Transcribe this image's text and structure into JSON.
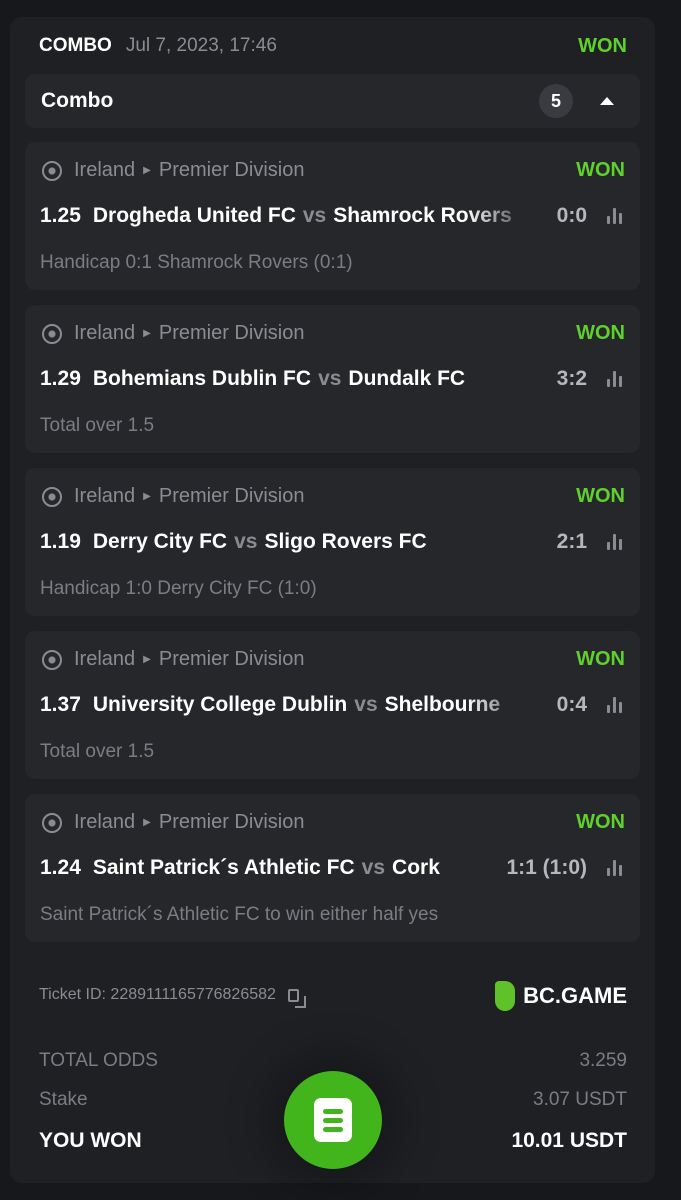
{
  "header": {
    "type": "COMBO",
    "date": "Jul 7, 2023, 17:46",
    "status": "WON"
  },
  "combo": {
    "label": "Combo",
    "count": "5"
  },
  "legs": [
    {
      "country": "Ireland",
      "league": "Premier Division",
      "status": "WON",
      "odds": "1.25",
      "home": "Drogheda United FC",
      "vs": "vs",
      "away": "Shamrock Rovers",
      "score": "0:0",
      "market": "Handicap 0:1 Shamrock Rovers (0:1)"
    },
    {
      "country": "Ireland",
      "league": "Premier Division",
      "status": "WON",
      "odds": "1.29",
      "home": "Bohemians Dublin FC",
      "vs": "vs",
      "away": "Dundalk FC",
      "score": "3:2",
      "market": "Total over 1.5"
    },
    {
      "country": "Ireland",
      "league": "Premier Division",
      "status": "WON",
      "odds": "1.19",
      "home": "Derry City FC",
      "vs": "vs",
      "away": "Sligo Rovers FC",
      "score": "2:1",
      "market": "Handicap 1:0 Derry City FC (1:0)"
    },
    {
      "country": "Ireland",
      "league": "Premier Division",
      "status": "WON",
      "odds": "1.37",
      "home": "University College Dublin",
      "vs": "vs",
      "away": "Shelbourne",
      "score": "0:4",
      "market": "Total over 1.5"
    },
    {
      "country": "Ireland",
      "league": "Premier Division",
      "status": "WON",
      "odds": "1.24",
      "home": "Saint Patrick´s Athletic FC",
      "vs": "vs",
      "away": "Cork",
      "score": "1:1 (1:0)",
      "market": "Saint Patrick´s Athletic FC to win either half yes"
    }
  ],
  "footer": {
    "ticket": "Ticket ID: 2289111165776826582",
    "brand": "BC.GAME",
    "total_odds_label": "TOTAL ODDS",
    "total_odds": "3.259",
    "stake_label": "Stake",
    "stake": "3.07 USDT",
    "won_label": "YOU WON",
    "won": "10.01 USDT"
  },
  "colors": {
    "accent": "#5fd02c",
    "button": "#43b51c",
    "card": "#1f2024",
    "leg": "#26272b"
  }
}
